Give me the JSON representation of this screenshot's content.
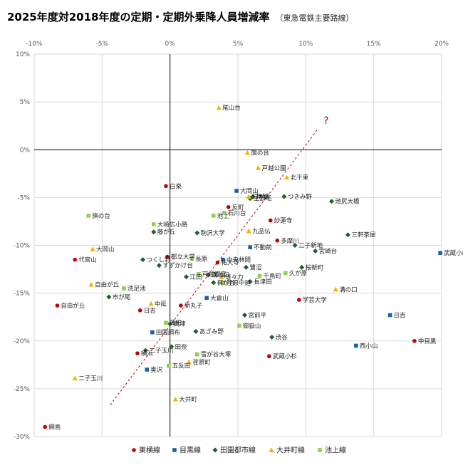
{
  "title": "2025年度対2018年度の定期・定期外乗降人員増減率",
  "subtitle": "（東急電鉄主要路線）",
  "chart_data": {
    "type": "scatter",
    "xlim": [
      -10,
      20
    ],
    "ylim": [
      -30,
      10
    ],
    "x_ticks": [
      "-10%",
      "-5%",
      "0%",
      "5%",
      "10%",
      "15%",
      "20%"
    ],
    "y_ticks": [
      "10%",
      "5%",
      "0%",
      "-5%",
      "-10%",
      "-15%",
      "-20%",
      "-25%",
      "-30%"
    ],
    "grid": true,
    "legend_position": "bottom",
    "annotation": "?",
    "series": [
      {
        "name": "東横線",
        "color": "#c00000",
        "marker": "circle",
        "points": [
          {
            "label": "白楽",
            "x": -0.3,
            "y": -3.8
          },
          {
            "label": "反町",
            "x": 4.3,
            "y": -6.0
          },
          {
            "label": "妙蓮寺",
            "x": 7.4,
            "y": -7.4
          },
          {
            "label": "多摩川",
            "x": 7.9,
            "y": -9.5
          },
          {
            "label": "代官山",
            "x": -7.0,
            "y": -11.5
          },
          {
            "label": "都立大学",
            "x": -0.2,
            "y": -11.2
          },
          {
            "label": "祐天寺",
            "x": 3.5,
            "y": -11.8
          },
          {
            "label": "自由が丘",
            "x": -8.3,
            "y": -16.3
          },
          {
            "label": "日吉",
            "x": -2.2,
            "y": -16.8
          },
          {
            "label": "新丸子",
            "x": 0.8,
            "y": -16.3
          },
          {
            "label": "学芸大学",
            "x": 9.5,
            "y": -15.7
          },
          {
            "label": "中目黒",
            "x": 18.0,
            "y": -20.0
          },
          {
            "label": "武蔵小杉",
            "x": 7.3,
            "y": -21.6
          },
          {
            "label": "横浜",
            "x": -2.4,
            "y": -21.3
          },
          {
            "label": "綱島",
            "x": -9.2,
            "y": -29.0
          }
        ]
      },
      {
        "name": "目黒線",
        "color": "#1f5fa8",
        "marker": "square",
        "points": [
          {
            "label": "大岡山",
            "x": 4.9,
            "y": -4.3
          },
          {
            "label": "不動前",
            "x": 5.9,
            "y": -10.2
          },
          {
            "label": "中央林間",
            "x": 3.9,
            "y": -11.5
          },
          {
            "label": "武蔵小山",
            "x": 19.9,
            "y": -10.8
          },
          {
            "label": "大倉山",
            "x": 2.7,
            "y": -15.5
          },
          {
            "label": "日吉",
            "x": 16.2,
            "y": -17.3
          },
          {
            "label": "西小山",
            "x": 13.7,
            "y": -20.5
          },
          {
            "label": "田園調布",
            "x": -1.3,
            "y": -19.1
          },
          {
            "label": "奥沢",
            "x": -1.7,
            "y": -23.0
          }
        ]
      },
      {
        "name": "田園都市線",
        "color": "#1e5e2a",
        "marker": "diamond",
        "points": [
          {
            "label": "用賀",
            "x": 6.1,
            "y": -4.9
          },
          {
            "label": "上野毛",
            "x": 5.9,
            "y": -5.1
          },
          {
            "label": "つきみ野",
            "x": 8.4,
            "y": -4.9
          },
          {
            "label": "池尻大橋",
            "x": 11.9,
            "y": -5.4
          },
          {
            "label": "藤が丘",
            "x": -1.2,
            "y": -8.6
          },
          {
            "label": "三軒茶屋",
            "x": 13.1,
            "y": -8.9
          },
          {
            "label": "駒沢大学",
            "x": 2.0,
            "y": -8.7
          },
          {
            "label": "宮崎台",
            "x": 10.7,
            "y": -10.6
          },
          {
            "label": "つくし野",
            "x": -2.0,
            "y": -11.5
          },
          {
            "label": "すずかけ台",
            "x": -0.8,
            "y": -12.1
          },
          {
            "label": "二子新地",
            "x": 9.2,
            "y": -10.0
          },
          {
            "label": "鷺沼",
            "x": 5.6,
            "y": -12.3
          },
          {
            "label": "桜新町",
            "x": 9.7,
            "y": -12.3
          },
          {
            "label": "溝の口",
            "x": 2.8,
            "y": -13.1
          },
          {
            "label": "梶が谷",
            "x": 3.2,
            "y": -13.9
          },
          {
            "label": "江田",
            "x": 1.2,
            "y": -13.3
          },
          {
            "label": "長津田",
            "x": 5.9,
            "y": -13.8
          },
          {
            "label": "市が尾",
            "x": -4.5,
            "y": -15.4
          },
          {
            "label": "宮前平",
            "x": 5.5,
            "y": -17.3
          },
          {
            "label": "高津",
            "x": 0.0,
            "y": -18.2
          },
          {
            "label": "渋谷",
            "x": 7.5,
            "y": -19.6
          },
          {
            "label": "あざみ野",
            "x": 1.9,
            "y": -19.0
          },
          {
            "label": "田奈",
            "x": 0.1,
            "y": -20.6
          },
          {
            "label": "二子玉川",
            "x": -1.8,
            "y": -21.0
          }
        ]
      },
      {
        "name": "大井町線",
        "color": "#f2b400",
        "marker": "triangle",
        "points": [
          {
            "label": "尾山台",
            "x": 3.6,
            "y": 4.4
          },
          {
            "label": "旗の台",
            "x": 5.7,
            "y": -0.3
          },
          {
            "label": "戸越公園",
            "x": 6.5,
            "y": -1.9
          },
          {
            "label": "北千束",
            "x": 8.6,
            "y": -2.9
          },
          {
            "label": "緑が丘",
            "x": 5.8,
            "y": -4.9
          },
          {
            "label": "九品仏",
            "x": 5.8,
            "y": -8.5
          },
          {
            "label": "大岡山",
            "x": -5.7,
            "y": -10.4
          },
          {
            "label": "自由が丘",
            "x": -5.8,
            "y": -14.1
          },
          {
            "label": "中延",
            "x": -1.4,
            "y": -16.1
          },
          {
            "label": "等々力",
            "x": 3.8,
            "y": -13.3
          },
          {
            "label": "溝の口",
            "x": 12.2,
            "y": -14.6
          },
          {
            "label": "荏原町",
            "x": 1.4,
            "y": -22.2
          },
          {
            "label": "二子玉川",
            "x": -7.0,
            "y": -23.9
          },
          {
            "label": "大井町",
            "x": 0.4,
            "y": -26.1
          }
        ]
      },
      {
        "name": "池上線",
        "color": "#92d050",
        "marker": "square",
        "points": [
          {
            "label": "旗の台",
            "x": -6.0,
            "y": -6.9
          },
          {
            "label": "大崎広小路",
            "x": -1.2,
            "y": -7.8
          },
          {
            "label": "池上",
            "x": 3.2,
            "y": -6.9
          },
          {
            "label": "石川台",
            "x": 4.0,
            "y": -6.6
          },
          {
            "label": "長原",
            "x": 1.6,
            "y": -11.4
          },
          {
            "label": "洗足池",
            "x": -3.4,
            "y": -14.5
          },
          {
            "label": "戸越銀座",
            "x": 2.1,
            "y": -13.0
          },
          {
            "label": "千鳥町",
            "x": 6.6,
            "y": -13.2
          },
          {
            "label": "久が原",
            "x": 8.5,
            "y": -12.9
          },
          {
            "label": "荏原中延",
            "x": 3.9,
            "y": -13.9
          },
          {
            "label": "御嶽山",
            "x": 5.1,
            "y": -18.4
          },
          {
            "label": "雪が谷大塚",
            "x": 2.0,
            "y": -21.4
          },
          {
            "label": "五反田",
            "x": -0.1,
            "y": -22.6
          },
          {
            "label": "蒲田",
            "x": -0.3,
            "y": -18.1
          }
        ]
      }
    ]
  }
}
